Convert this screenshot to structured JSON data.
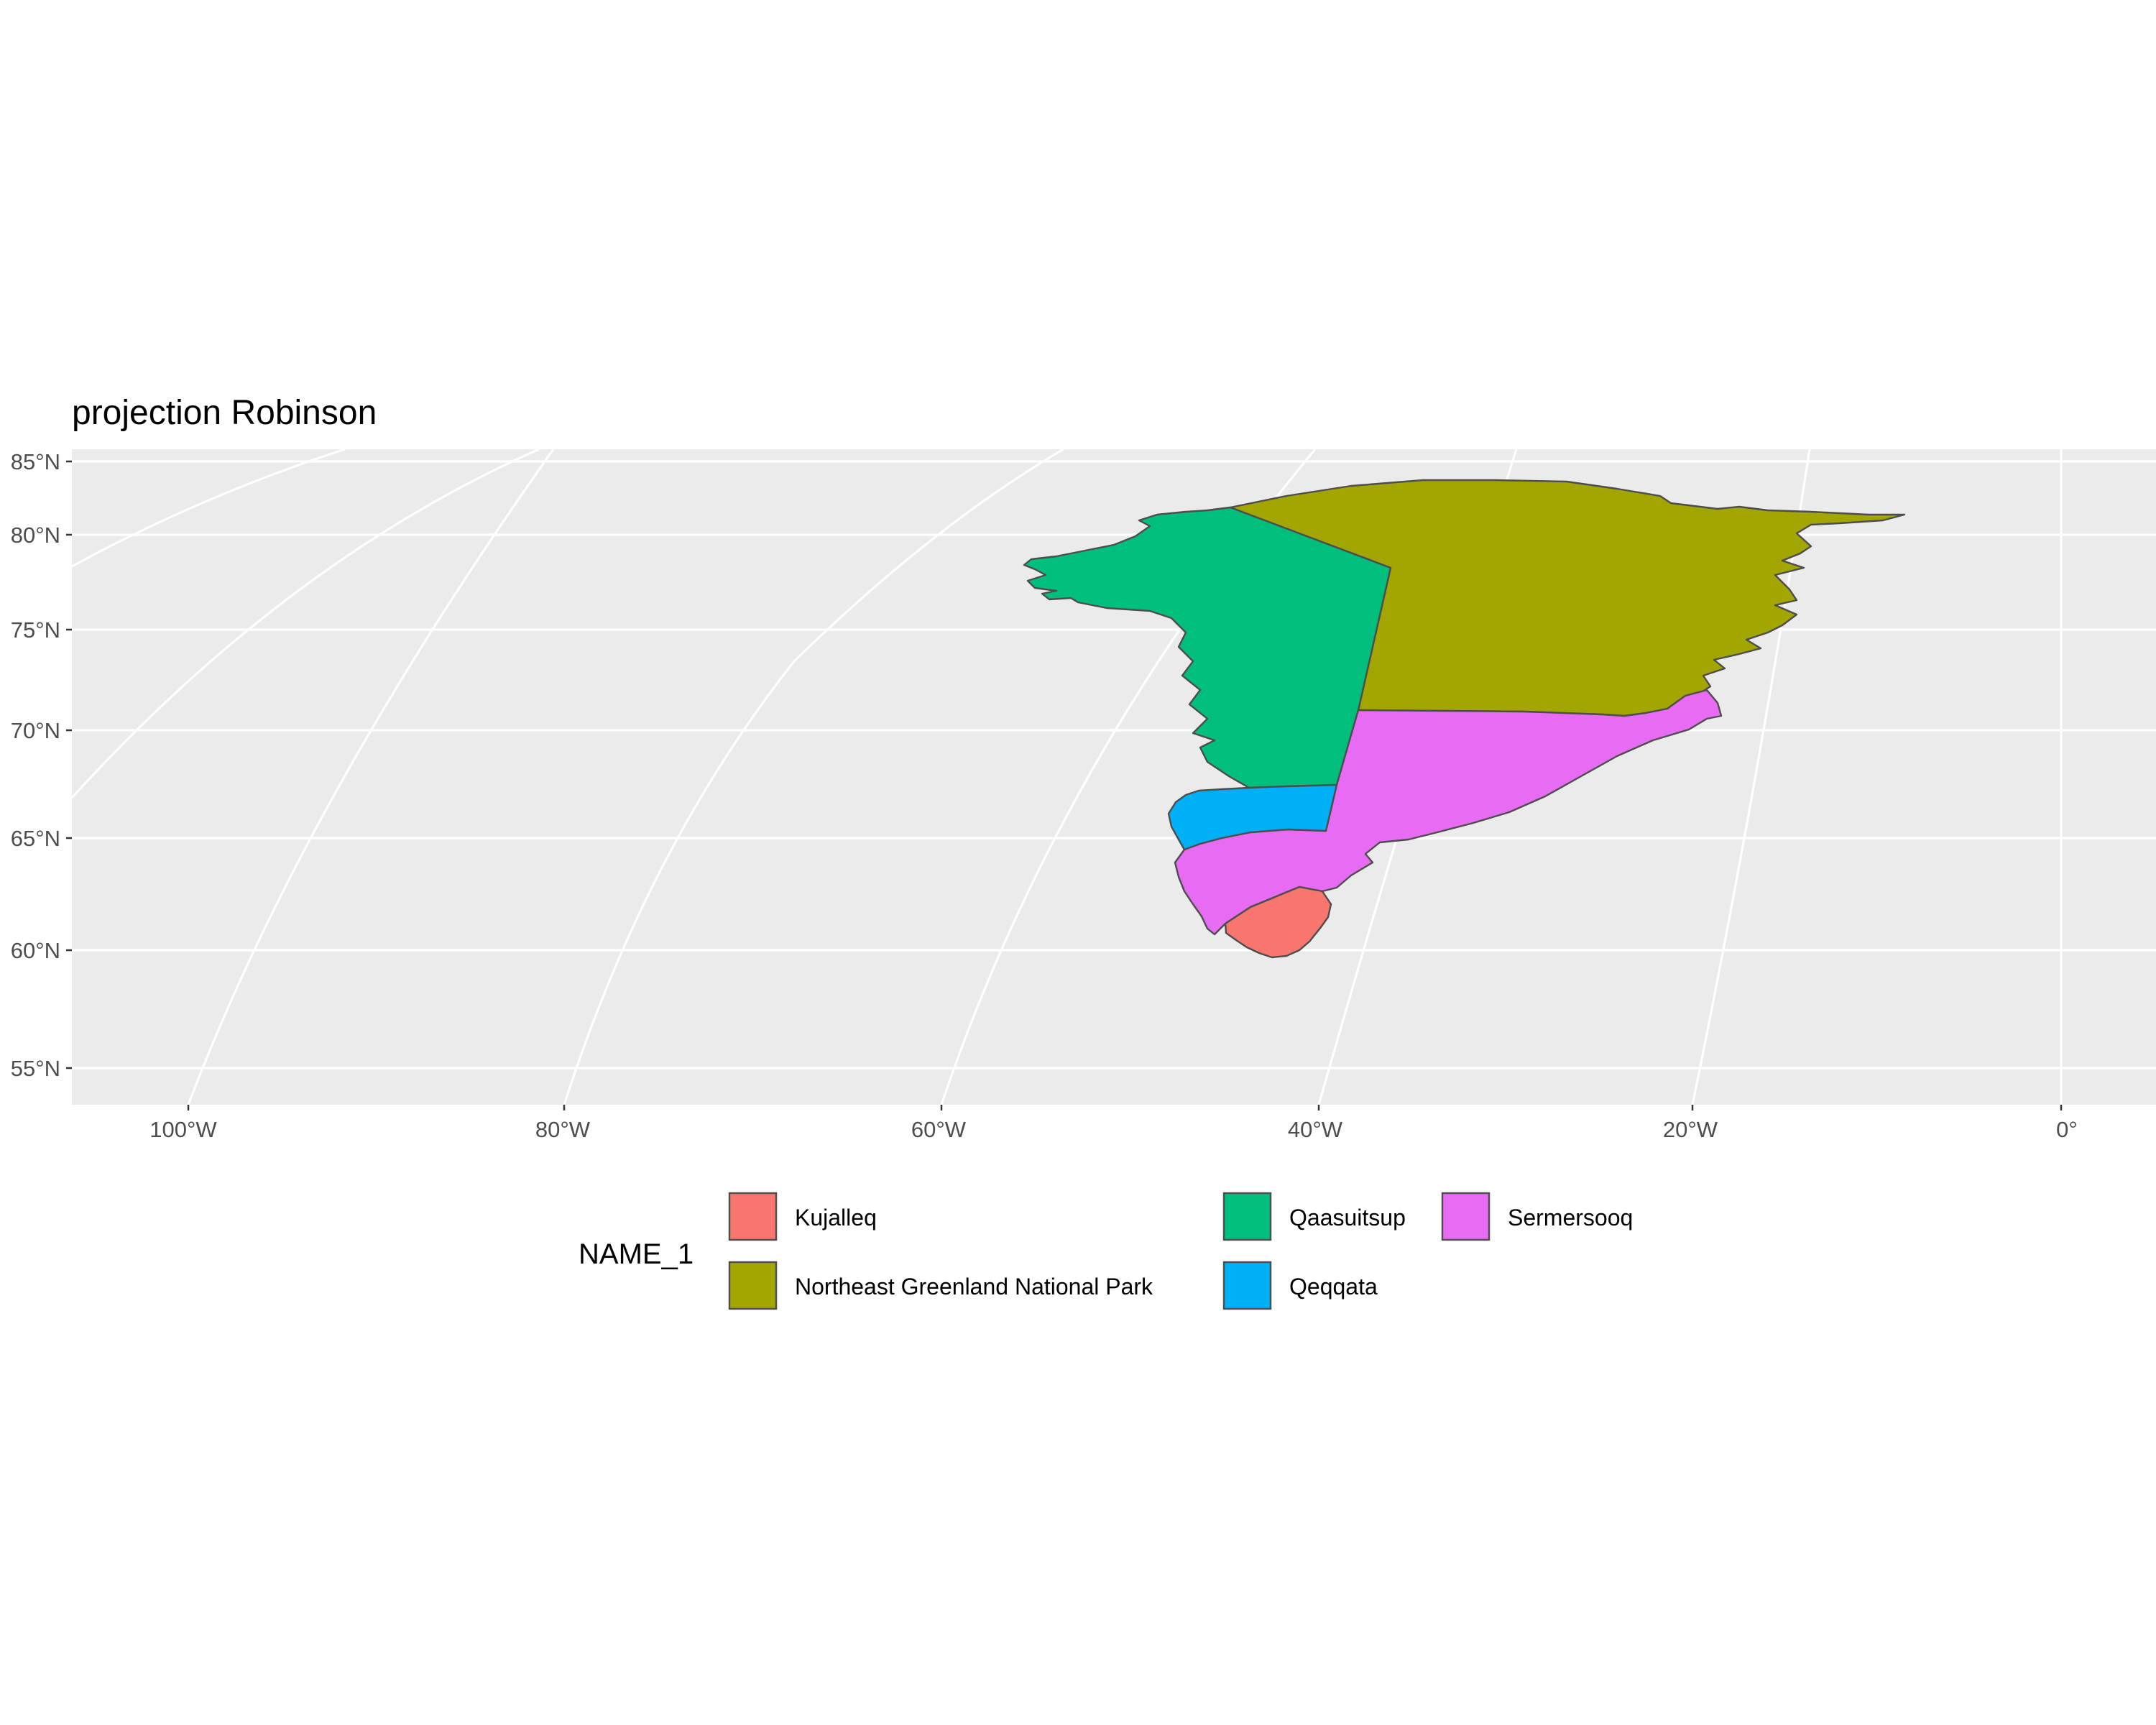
{
  "map": {
    "title": "projection Robinson",
    "projection": "Robinson",
    "panel_background": "#ebebeb",
    "grid_color": "#ffffff",
    "latitude_ticks": [
      {
        "lat": 85,
        "label": "85°N"
      },
      {
        "lat": 80,
        "label": "80°N"
      },
      {
        "lat": 75,
        "label": "75°N"
      },
      {
        "lat": 70,
        "label": "70°N"
      },
      {
        "lat": 65,
        "label": "65°N"
      },
      {
        "lat": 60,
        "label": "60°N"
      },
      {
        "lat": 55,
        "label": "55°N"
      }
    ],
    "longitude_ticks": [
      {
        "lon": -100,
        "label": "100°W"
      },
      {
        "lon": -80,
        "label": "80°W"
      },
      {
        "lon": -60,
        "label": "60°W"
      },
      {
        "lon": -40,
        "label": "40°W"
      },
      {
        "lon": -20,
        "label": "20°W"
      },
      {
        "lon": 0,
        "label": "0°"
      }
    ],
    "legend": {
      "title": "NAME_1",
      "position": "bottom",
      "items": [
        {
          "label": "Kujalleq",
          "color": "#f8766d"
        },
        {
          "label": "Northeast Greenland National Park",
          "color": "#a3a500"
        },
        {
          "label": "Qaasuitsup",
          "color": "#00bf7d"
        },
        {
          "label": "Qeqqata",
          "color": "#00b0f6"
        },
        {
          "label": "Sermersooq",
          "color": "#e76bf3"
        }
      ]
    },
    "regions": [
      {
        "name": "Northeast Greenland National Park",
        "color": "#a3a500"
      },
      {
        "name": "Qaasuitsup",
        "color": "#00bf7d"
      },
      {
        "name": "Sermersooq",
        "color": "#e76bf3"
      },
      {
        "name": "Qeqqata",
        "color": "#00b0f6"
      },
      {
        "name": "Kujalleq",
        "color": "#f8766d"
      }
    ]
  }
}
